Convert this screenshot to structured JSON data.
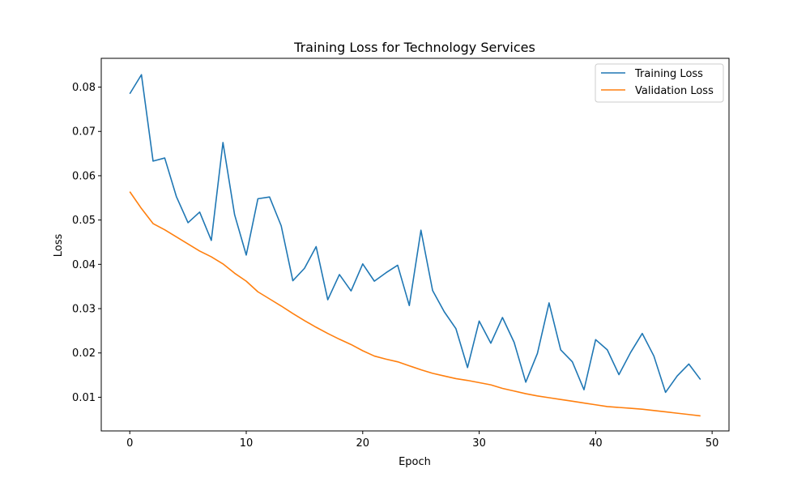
{
  "chart_data": {
    "type": "line",
    "title": "Training Loss for Technology Services",
    "xlabel": "Epoch",
    "ylabel": "Loss",
    "xlim": [
      -2.45,
      51.45
    ],
    "ylim": [
      0.0024,
      0.0865
    ],
    "xticks": [
      0,
      10,
      20,
      30,
      40,
      50
    ],
    "yticks": [
      0.01,
      0.02,
      0.03,
      0.04,
      0.05,
      0.06,
      0.07,
      0.08
    ],
    "ytick_labels": [
      "0.01",
      "0.02",
      "0.03",
      "0.04",
      "0.05",
      "0.06",
      "0.07",
      "0.08"
    ],
    "grid": false,
    "legend_position": "upper right",
    "x": [
      0,
      1,
      2,
      3,
      4,
      5,
      6,
      7,
      8,
      9,
      10,
      11,
      12,
      13,
      14,
      15,
      16,
      17,
      18,
      19,
      20,
      21,
      22,
      23,
      24,
      25,
      26,
      27,
      28,
      29,
      30,
      31,
      32,
      33,
      34,
      35,
      36,
      37,
      38,
      39,
      40,
      41,
      42,
      43,
      44,
      45,
      46,
      47,
      48,
      49
    ],
    "series": [
      {
        "name": "Training Loss",
        "color": "#1f77b4",
        "values": [
          0.0785,
          0.0828,
          0.0633,
          0.064,
          0.0553,
          0.0494,
          0.0518,
          0.0454,
          0.0675,
          0.0512,
          0.0421,
          0.0548,
          0.0552,
          0.0487,
          0.0363,
          0.0391,
          0.044,
          0.032,
          0.0377,
          0.034,
          0.0401,
          0.0362,
          0.0381,
          0.0398,
          0.0307,
          0.0477,
          0.0341,
          0.0293,
          0.0255,
          0.0167,
          0.0272,
          0.0222,
          0.028,
          0.0224,
          0.0134,
          0.0199,
          0.0313,
          0.0207,
          0.018,
          0.0117,
          0.023,
          0.0207,
          0.0151,
          0.0201,
          0.0244,
          0.0193,
          0.0111,
          0.0148,
          0.0175,
          0.014
        ]
      },
      {
        "name": "Validation Loss",
        "color": "#ff7f0e",
        "values": [
          0.0564,
          0.0526,
          0.0492,
          0.0478,
          0.0462,
          0.0446,
          0.043,
          0.0417,
          0.0401,
          0.038,
          0.0362,
          0.0338,
          0.0322,
          0.0306,
          0.0289,
          0.0273,
          0.0258,
          0.0244,
          0.0231,
          0.0219,
          0.0205,
          0.0193,
          0.0186,
          0.018,
          0.0171,
          0.0162,
          0.0154,
          0.0148,
          0.0142,
          0.0138,
          0.0133,
          0.0128,
          0.012,
          0.0114,
          0.0108,
          0.0103,
          0.0099,
          0.0095,
          0.0091,
          0.0087,
          0.0083,
          0.0079,
          0.0077,
          0.0075,
          0.0073,
          0.007,
          0.0067,
          0.0064,
          0.0061,
          0.0058
        ]
      }
    ]
  }
}
